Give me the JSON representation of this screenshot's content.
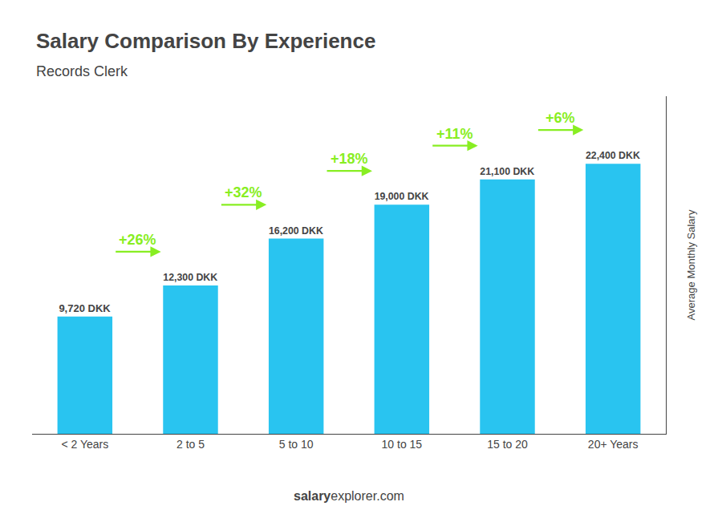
{
  "chart_data": {
    "type": "bar",
    "title": "Salary Comparison By Experience",
    "subtitle": "Records Clerk",
    "ylabel": "Average Monthly Salary",
    "watermark": [
      "salary",
      "explorer.com"
    ],
    "categories": [
      "< 2 Years",
      "2 to 5",
      "5 to 10",
      "10 to 15",
      "15 to 20",
      "20+ Years"
    ],
    "values": [
      9720,
      12300,
      16200,
      19000,
      21100,
      22400
    ],
    "value_labels": [
      "9,720 DKK",
      "12,300 DKK",
      "16,200 DKK",
      "19,000 DKK",
      "21,100 DKK",
      "22,400 DKK"
    ],
    "data_labels": true,
    "color": "#29c4f0",
    "ylim": [
      0,
      28000
    ],
    "tick_labels": "x",
    "grid": false,
    "annotations": [
      {
        "text": "+26%",
        "color": "#88ee22"
      },
      {
        "text": "+32%",
        "color": "#88ee22"
      },
      {
        "text": "+18%",
        "color": "#88ee22"
      },
      {
        "text": "+11%",
        "color": "#88ee22"
      },
      {
        "text": "+6%",
        "color": "#88ee22"
      }
    ]
  }
}
